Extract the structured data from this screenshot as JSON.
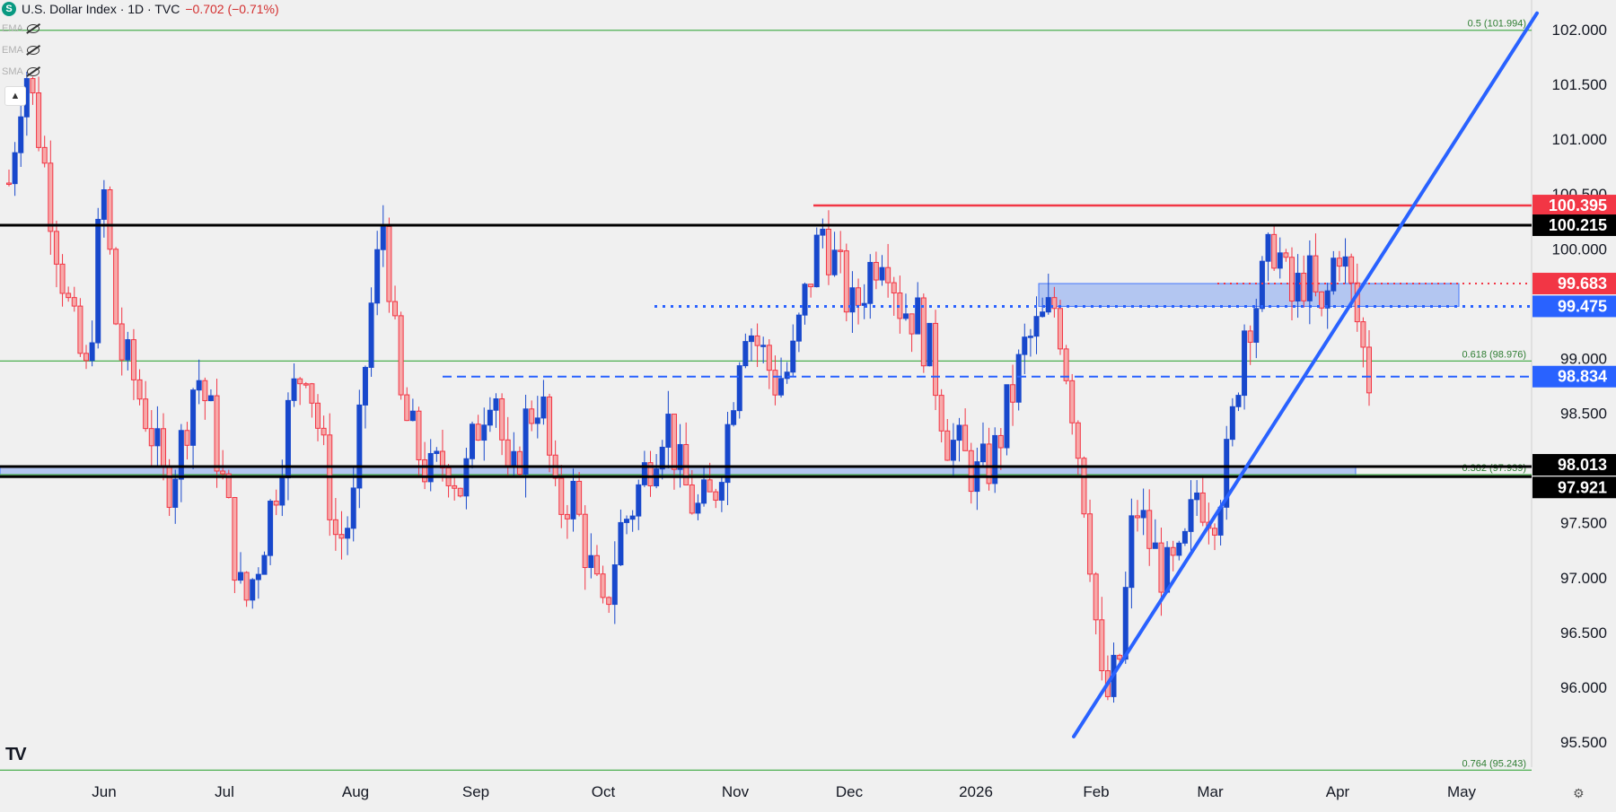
{
  "header": {
    "symbol_badge": "S",
    "title": "U.S. Dollar Index · 1D · TVC",
    "change": "−0.702 (−0.71%)"
  },
  "indicators": [
    {
      "label": "EMA"
    },
    {
      "label": "EMA"
    },
    {
      "label": "SMA"
    }
  ],
  "collapse_icon": "chevron-up-icon",
  "watermark": "TV",
  "chart_data": {
    "type": "candlestick",
    "title": "U.S. Dollar Index",
    "interval": "1D",
    "source": "TVC",
    "ylim": [
      95.3,
      102.2
    ],
    "y_ticks": [
      "95.500",
      "96.000",
      "96.500",
      "97.000",
      "97.500",
      "98.000",
      "98.500",
      "99.000",
      "99.500",
      "100.000",
      "100.500",
      "101.000",
      "101.500",
      "102.000"
    ],
    "x_ticks": [
      "Jun",
      "Jul",
      "Aug",
      "Sep",
      "Oct",
      "Nov",
      "Dec",
      "2026",
      "Feb",
      "Mar",
      "Apr",
      "May"
    ],
    "colors": {
      "up": "#1848cc",
      "down": "#f23645",
      "bg": "#f0f0f0"
    },
    "candle_path": [
      100.6,
      101.7,
      101.0,
      100.1,
      99.3,
      98.8,
      100.6,
      99.1,
      98.8,
      98.4,
      97.8,
      98.2,
      98.9,
      98.4,
      97.6,
      96.7,
      97.2,
      97.8,
      98.6,
      99.0,
      98.2,
      97.3,
      97.6,
      99.3,
      100.3,
      98.6,
      98.2,
      97.9,
      98.1,
      97.8,
      98.4,
      98.9,
      97.7,
      98.4,
      98.7,
      97.6,
      97.8,
      97.2,
      96.6,
      97.4,
      97.7,
      98.1,
      98.5,
      97.9,
      97.6,
      97.7,
      98.4,
      99.4,
      99.1,
      98.8,
      98.9,
      99.6,
      100.2,
      99.8,
      99.4,
      99.8,
      100.1,
      99.5,
      99.4,
      99.0,
      98.3,
      98.1,
      97.9,
      98.1,
      98.6,
      99.1,
      99.3,
      99.5,
      98.6,
      97.5,
      95.8,
      96.2,
      97.7,
      97.3,
      97.0,
      97.1,
      97.8,
      97.6,
      98.1,
      99.3,
      99.6,
      100.1,
      99.5,
      99.8,
      99.3,
      100.1,
      99.5,
      98.8
    ],
    "levels": [
      {
        "label": "100.395",
        "value": 100.395,
        "style": "solid-red",
        "color": "#f23645"
      },
      {
        "label": "100.215",
        "value": 100.215,
        "style": "solid-black",
        "color": "#000000"
      },
      {
        "label": "99.683",
        "value": 99.683,
        "style": "dotted-red",
        "color": "#f23645"
      },
      {
        "label": "99.475",
        "value": 99.475,
        "style": "dotted-blue",
        "color": "#2962ff"
      },
      {
        "label": "98.834",
        "value": 98.834,
        "style": "dashed-blue",
        "color": "#2962ff"
      },
      {
        "label": "98.013",
        "value": 98.013,
        "style": "solid-black",
        "color": "#000000"
      },
      {
        "label": "97.921",
        "value": 97.921,
        "style": "solid-black",
        "color": "#000000"
      }
    ],
    "zones": [
      {
        "from": 99.475,
        "to": 99.683
      },
      {
        "from": 97.921,
        "to": 98.013
      }
    ],
    "fibonacci": [
      {
        "label": "0.5 (101.994)",
        "value": 101.994
      },
      {
        "label": "0.618 (98.976)",
        "value": 98.976
      },
      {
        "label": "0.382 (97.939)",
        "value": 97.939
      },
      {
        "label": "0.764 (95.243)",
        "value": 95.243
      }
    ],
    "trendline": {
      "from": {
        "date": "2026-01-27",
        "value": 95.55
      },
      "to": {
        "date": "2026-05-12",
        "value": 102.15
      }
    }
  }
}
